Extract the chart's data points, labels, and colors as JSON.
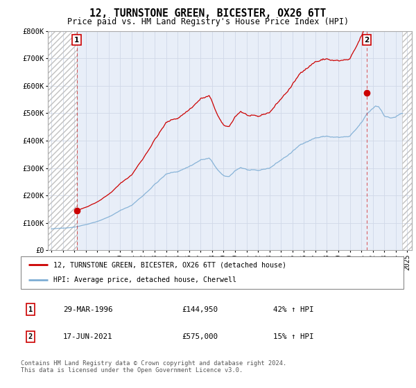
{
  "title": "12, TURNSTONE GREEN, BICESTER, OX26 6TT",
  "subtitle": "Price paid vs. HM Land Registry's House Price Index (HPI)",
  "ylabel_ticks": [
    "£0",
    "£100K",
    "£200K",
    "£300K",
    "£400K",
    "£500K",
    "£600K",
    "£700K",
    "£800K"
  ],
  "ylim": [
    0,
    800000
  ],
  "xlim": [
    1993.7,
    2025.4
  ],
  "xticks": [
    1994,
    1995,
    1996,
    1997,
    1998,
    1999,
    2000,
    2001,
    2002,
    2003,
    2004,
    2005,
    2006,
    2007,
    2008,
    2009,
    2010,
    2011,
    2012,
    2013,
    2014,
    2015,
    2016,
    2017,
    2018,
    2019,
    2020,
    2021,
    2022,
    2023,
    2024,
    2025
  ],
  "sale1_x": 1996.21,
  "sale1_y": 144950,
  "sale2_x": 2021.46,
  "sale2_y": 575000,
  "legend_label1": "12, TURNSTONE GREEN, BICESTER, OX26 6TT (detached house)",
  "legend_label2": "HPI: Average price, detached house, Cherwell",
  "row1_num": "1",
  "row1_date": "29-MAR-1996",
  "row1_price": "£144,950",
  "row1_hpi": "42% ↑ HPI",
  "row2_num": "2",
  "row2_date": "17-JUN-2021",
  "row2_price": "£575,000",
  "row2_hpi": "15% ↑ HPI",
  "footer": "Contains HM Land Registry data © Crown copyright and database right 2024.\nThis data is licensed under the Open Government Licence v3.0.",
  "bg_color": "#e8eef8",
  "red_color": "#cc0000",
  "blue_color": "#7dadd4"
}
